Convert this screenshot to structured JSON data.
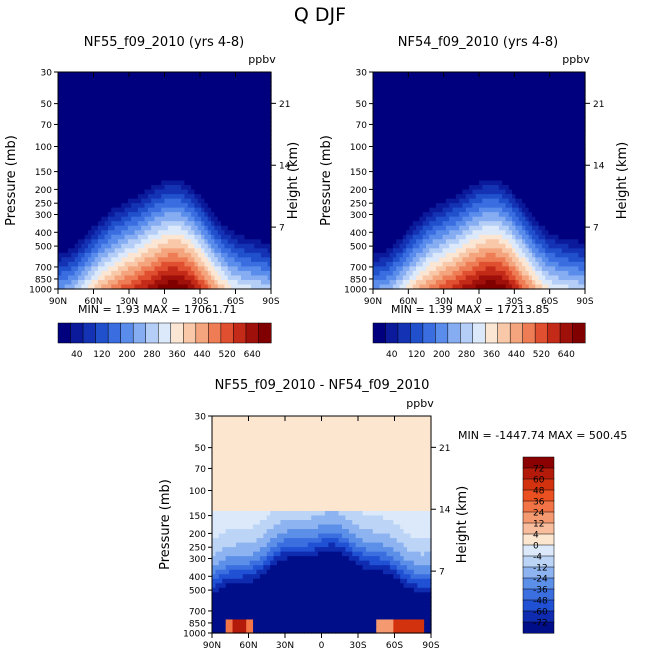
{
  "figure": {
    "title": "Q DJF"
  },
  "chart_data": [
    {
      "type": "heatmap",
      "title": "NF55_f09_2010 (yrs 4-8)",
      "units": "ppbv",
      "ylabel": "Pressure (mb)",
      "ylabel_right": "Height (km)",
      "x_ticks": [
        "90N",
        "60N",
        "30N",
        "0",
        "30S",
        "60S",
        "90S"
      ],
      "y_ticks": [
        "30",
        "50",
        "70",
        "100",
        "150",
        "200",
        "250",
        "300",
        "400",
        "500",
        "700",
        "850",
        "1000"
      ],
      "right_ticks": [
        "21",
        "14",
        "7"
      ],
      "ylim": [
        30,
        1000
      ],
      "stats": {
        "min_label": "MIN =",
        "min": "1.93",
        "max_label": "MAX =",
        "max": "17061.71"
      },
      "colorbar": {
        "labels": [
          "40",
          "120",
          "200",
          "280",
          "360",
          "440",
          "520",
          "640"
        ]
      }
    },
    {
      "type": "heatmap",
      "title": "NF54_f09_2010 (yrs 4-8)",
      "units": "ppbv",
      "ylabel": "Pressure (mb)",
      "ylabel_right": "Height (km)",
      "x_ticks": [
        "90N",
        "60N",
        "30N",
        "0",
        "30S",
        "60S",
        "90S"
      ],
      "y_ticks": [
        "30",
        "50",
        "70",
        "100",
        "150",
        "200",
        "250",
        "300",
        "400",
        "500",
        "700",
        "850",
        "1000"
      ],
      "right_ticks": [
        "21",
        "14",
        "7"
      ],
      "ylim": [
        30,
        1000
      ],
      "stats": {
        "min_label": "MIN =",
        "min": "1.39",
        "max_label": "MAX =",
        "max": "17213.85"
      },
      "colorbar": {
        "labels": [
          "40",
          "120",
          "200",
          "280",
          "360",
          "440",
          "520",
          "640"
        ]
      }
    },
    {
      "type": "heatmap",
      "title": "NF55_f09_2010 - NF54_f09_2010",
      "units": "ppbv",
      "ylabel": "Pressure (mb)",
      "ylabel_right": "Height (km)",
      "x_ticks": [
        "90N",
        "60N",
        "30N",
        "0",
        "30S",
        "60S",
        "90S"
      ],
      "y_ticks": [
        "30",
        "50",
        "70",
        "100",
        "150",
        "200",
        "250",
        "300",
        "400",
        "500",
        "700",
        "850",
        "1000"
      ],
      "right_ticks": [
        "21",
        "14",
        "7"
      ],
      "ylim": [
        30,
        1000
      ],
      "stats": {
        "min_label": "MIN =",
        "min": "-1447.74",
        "max_label": "MAX =",
        "max": "500.45"
      },
      "colorbar": {
        "labels": [
          "72",
          "60",
          "48",
          "36",
          "24",
          "12",
          "4",
          "0",
          "-4",
          "-12",
          "-24",
          "-36",
          "-48",
          "-60",
          "-72"
        ]
      }
    }
  ],
  "palettes": {
    "seq": [
      "#00007f",
      "#0a1a9a",
      "#1432b4",
      "#2050cc",
      "#3a6ee0",
      "#5a8cec",
      "#86acf2",
      "#b4cef7",
      "#dce9fa",
      "#fbe6d4",
      "#f8c8a8",
      "#f4a57e",
      "#ee7c55",
      "#e05030",
      "#c42a18",
      "#a0100a",
      "#800000"
    ],
    "diff": [
      "#8b0000",
      "#b41a0a",
      "#d3320f",
      "#ea5020",
      "#f27446",
      "#f59a70",
      "#f8bd9d",
      "#fde6cf",
      "#dbe9fb",
      "#bcd5f7",
      "#8db3f0",
      "#5c8fe8",
      "#3b6fe0",
      "#2050d3",
      "#0f2cb0",
      "#000e8a"
    ]
  }
}
